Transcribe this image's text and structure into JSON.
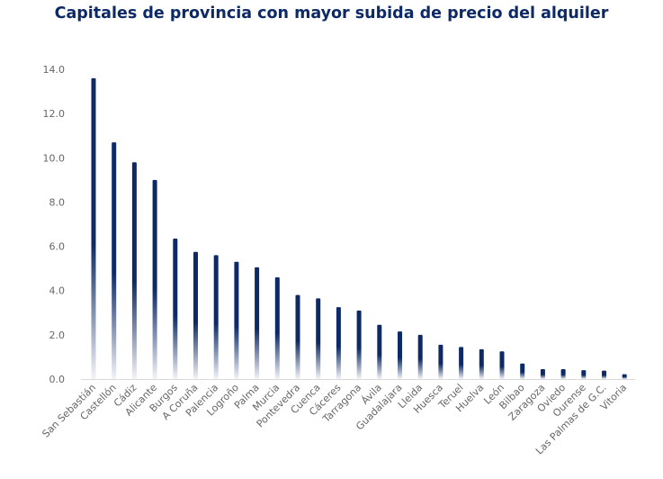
{
  "chart_data": {
    "type": "bar",
    "title": "Capitales de provincia con mayor subida de precio del alquiler",
    "xlabel": "",
    "ylabel": "",
    "ylim": [
      0,
      14
    ],
    "yticks": [
      "0.0",
      "2.0",
      "4.0",
      "6.0",
      "8.0",
      "10.0",
      "12.0",
      "14.0"
    ],
    "grid": false,
    "bar_color": "#0d2a66",
    "categories": [
      "San Sebastián",
      "Castellón",
      "Cádiz",
      "Alicante",
      "Burgos",
      "A Coruña",
      "Palencia",
      "Logroño",
      "Palma",
      "Murcia",
      "Pontevedra",
      "Cuenca",
      "Cáceres",
      "Tarragona",
      "Ávila",
      "Guadalajara",
      "Lleida",
      "Huesca",
      "Teruel",
      "Huelva",
      "León",
      "Bilbao",
      "Zaragoza",
      "Oviedo",
      "Ourense",
      "Las Palmas de G.C.",
      "Vitoria"
    ],
    "values": [
      13.6,
      10.7,
      9.8,
      9.0,
      6.35,
      5.75,
      5.6,
      5.3,
      5.05,
      4.6,
      3.8,
      3.65,
      3.25,
      3.1,
      2.45,
      2.15,
      2.0,
      1.55,
      1.45,
      1.35,
      1.25,
      0.7,
      0.45,
      0.45,
      0.4,
      0.38,
      0.22
    ]
  }
}
